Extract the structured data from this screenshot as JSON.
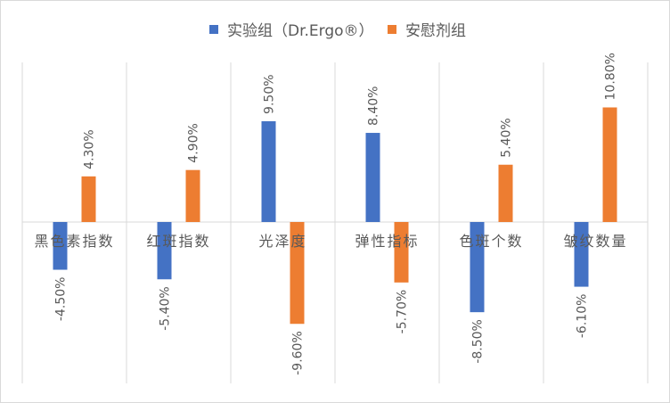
{
  "chart_data": {
    "type": "bar",
    "categories": [
      "黑色素指数",
      "红斑指数",
      "光泽度",
      "弹性指标",
      "色斑个数",
      "皱纹数量"
    ],
    "series": [
      {
        "name": "实验组（Dr.Ergo®）",
        "color": "#4472c4",
        "values": [
          -4.5,
          -5.4,
          9.5,
          8.4,
          -8.5,
          -6.1
        ],
        "labels": [
          "-4.50%",
          "-5.40%",
          "9.50%",
          "8.40%",
          "-8.50%",
          "-6.10%"
        ]
      },
      {
        "name": "安慰剂组",
        "color": "#ed7d31",
        "values": [
          4.3,
          4.9,
          -9.6,
          -5.7,
          5.4,
          10.8
        ],
        "labels": [
          "4.30%",
          "4.90%",
          "-9.60%",
          "-5.70%",
          "5.40%",
          "10.80%"
        ]
      }
    ],
    "ylim": [
      -12,
      12
    ],
    "legend_position": "top",
    "grid": "vertical category separators"
  }
}
